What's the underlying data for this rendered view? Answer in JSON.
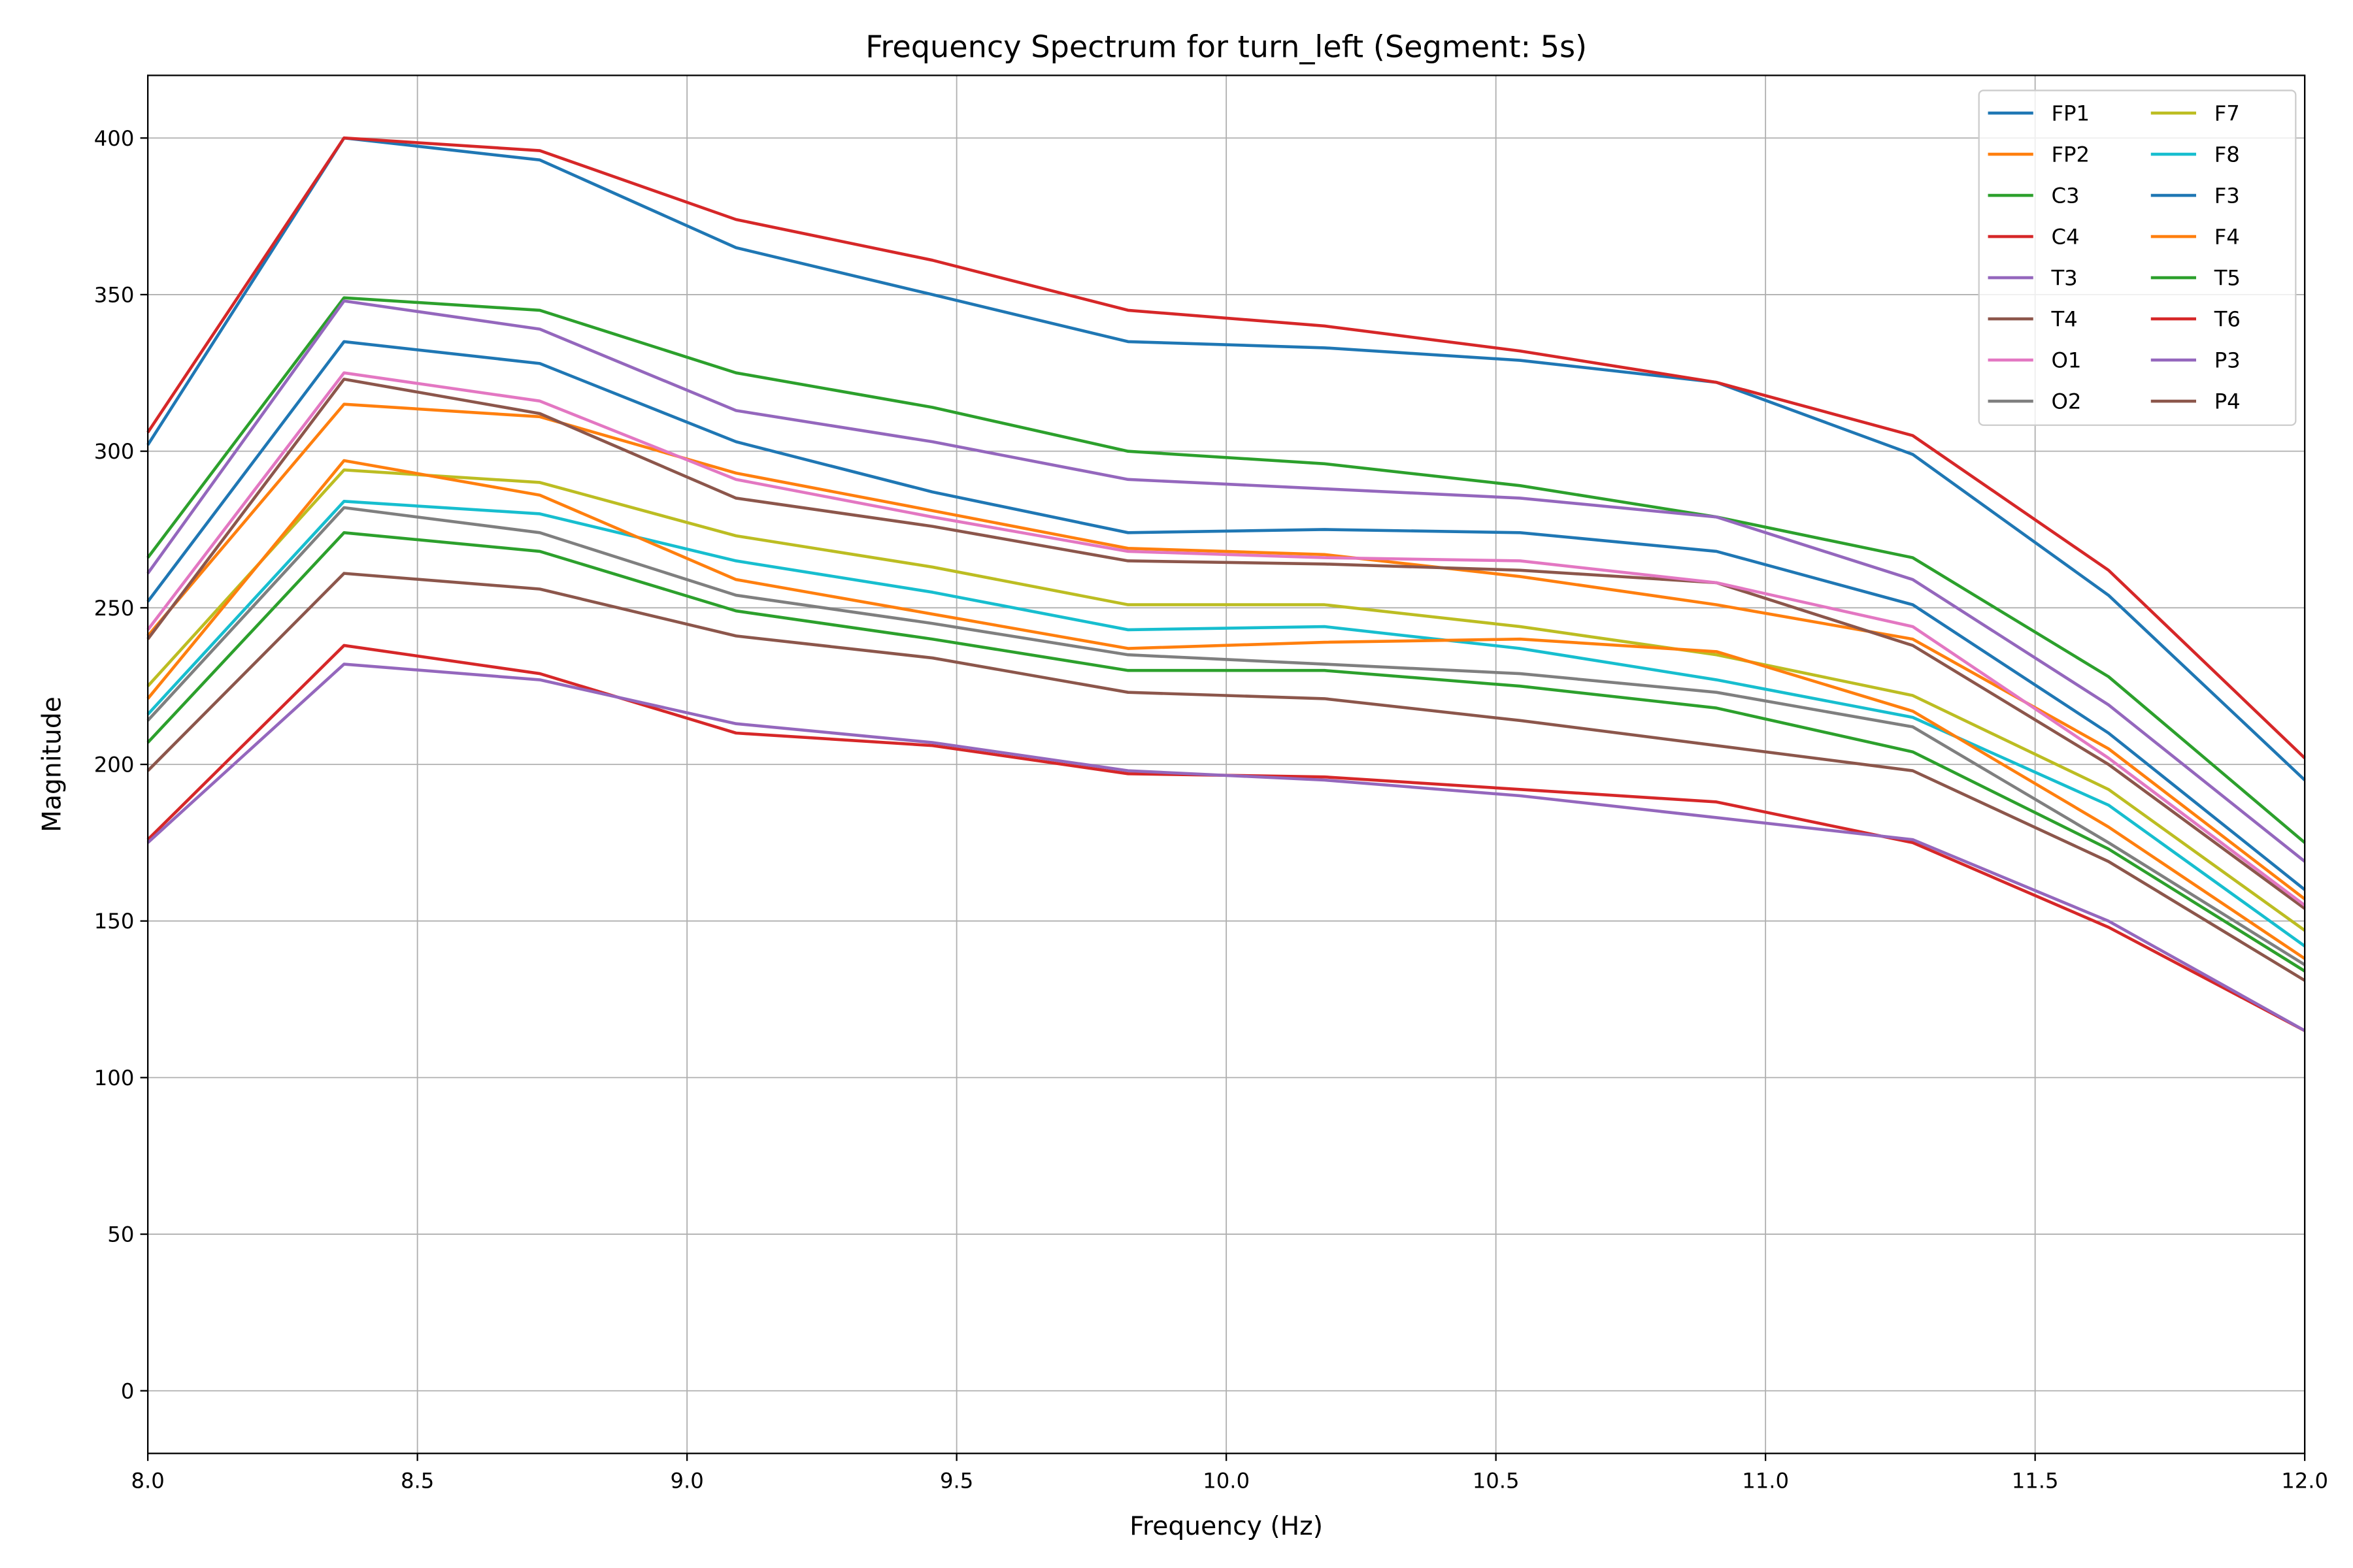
{
  "chart_data": {
    "type": "line",
    "title": "Frequency Spectrum for turn_left (Segment: 5s)",
    "xlabel": "Frequency (Hz)",
    "ylabel": "Magnitude",
    "xlim": [
      8.0,
      12.0
    ],
    "ylim": [
      -20,
      420
    ],
    "xticks": [
      "8.0",
      "8.5",
      "9.0",
      "9.5",
      "10.0",
      "10.5",
      "11.0",
      "11.5",
      "12.0"
    ],
    "yticks": [
      "0",
      "50",
      "100",
      "150",
      "200",
      "250",
      "300",
      "350",
      "400"
    ],
    "grid": true,
    "legend_position": "top-right",
    "x": [
      8.0,
      8.364,
      8.727,
      9.091,
      9.455,
      9.818,
      10.182,
      10.545,
      10.909,
      11.273,
      11.636,
      12.0
    ],
    "series": [
      {
        "name": "FP1",
        "color": "#1f77b4",
        "values": [
          302,
          400,
          393,
          365,
          350,
          335,
          333,
          329,
          322,
          299,
          254,
          195
        ]
      },
      {
        "name": "FP2",
        "color": "#ff7f0e",
        "values": [
          241,
          315,
          311,
          293,
          281,
          269,
          267,
          260,
          251,
          240,
          205,
          157
        ]
      },
      {
        "name": "C3",
        "color": "#2ca02c",
        "values": [
          266,
          349,
          345,
          325,
          314,
          300,
          296,
          289,
          279,
          266,
          228,
          175
        ]
      },
      {
        "name": "C4",
        "color": "#d62728",
        "values": [
          306,
          400,
          396,
          374,
          361,
          345,
          340,
          332,
          322,
          305,
          262,
          202
        ]
      },
      {
        "name": "T3",
        "color": "#9467bd",
        "values": [
          261,
          348,
          339,
          313,
          303,
          291,
          288,
          285,
          279,
          259,
          219,
          169
        ]
      },
      {
        "name": "T4",
        "color": "#8c564b",
        "values": [
          240,
          323,
          312,
          285,
          276,
          265,
          264,
          262,
          258,
          238,
          200,
          154
        ]
      },
      {
        "name": "O1",
        "color": "#e377c2",
        "values": [
          243,
          325,
          316,
          291,
          279,
          268,
          266,
          265,
          258,
          244,
          202,
          155
        ]
      },
      {
        "name": "O2",
        "color": "#7f7f7f",
        "values": [
          214,
          282,
          274,
          254,
          245,
          235,
          232,
          229,
          223,
          212,
          175,
          136
        ]
      },
      {
        "name": "F7",
        "color": "#bcbd22",
        "values": [
          225,
          294,
          290,
          273,
          263,
          251,
          251,
          244,
          235,
          222,
          192,
          147
        ]
      },
      {
        "name": "F8",
        "color": "#17becf",
        "values": [
          216,
          284,
          280,
          265,
          255,
          243,
          244,
          237,
          227,
          215,
          187,
          142
        ]
      },
      {
        "name": "F3",
        "color": "#1f77b4",
        "values": [
          252,
          335,
          328,
          303,
          287,
          274,
          275,
          274,
          268,
          251,
          210,
          160
        ]
      },
      {
        "name": "F4",
        "color": "#ff7f0e",
        "values": [
          221,
          297,
          286,
          259,
          248,
          237,
          239,
          240,
          236,
          217,
          180,
          138
        ]
      },
      {
        "name": "T5",
        "color": "#2ca02c",
        "values": [
          207,
          274,
          268,
          249,
          240,
          230,
          230,
          225,
          218,
          204,
          173,
          134
        ]
      },
      {
        "name": "T6",
        "color": "#d62728",
        "values": [
          176,
          238,
          229,
          210,
          206,
          197,
          196,
          192,
          188,
          175,
          148,
          115
        ]
      },
      {
        "name": "P3",
        "color": "#9467bd",
        "values": [
          175,
          232,
          227,
          213,
          207,
          198,
          195,
          190,
          183,
          176,
          150,
          115
        ]
      },
      {
        "name": "P4",
        "color": "#8c564b",
        "values": [
          198,
          261,
          256,
          241,
          234,
          223,
          221,
          214,
          206,
          198,
          169,
          131
        ]
      }
    ]
  }
}
